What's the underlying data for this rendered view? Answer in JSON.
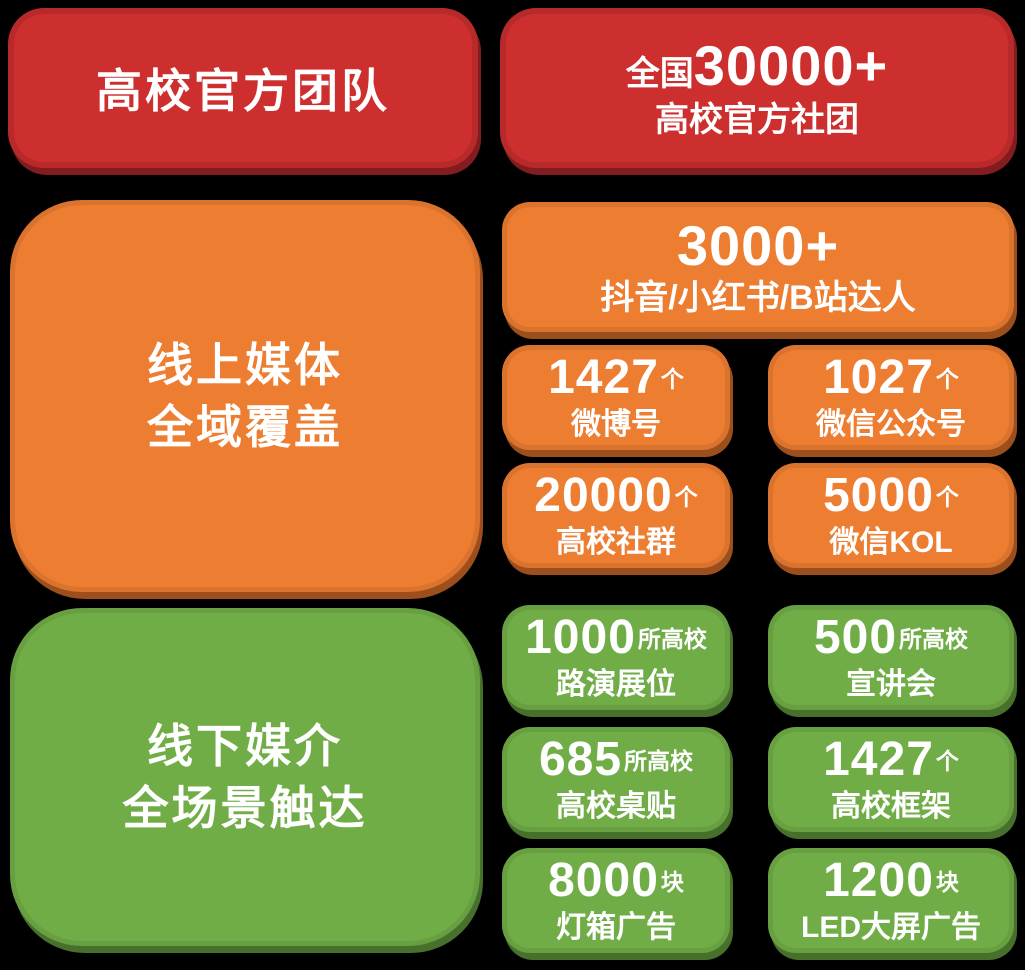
{
  "page": {
    "background": "#000000",
    "colors": {
      "red": "#cd2f2f",
      "orange": "#ed7d31",
      "green": "#70ad47",
      "text": "#ffffff"
    }
  },
  "sections": [
    {
      "id": "official-teams",
      "color": "#cd2f2f",
      "header": {
        "title": "高校官方团队"
      },
      "feature": {
        "prefix": "全国",
        "number": "30000+",
        "label": "高校官方社团"
      }
    },
    {
      "id": "online-media",
      "color": "#ed7d31",
      "header": {
        "line1": "线上媒体",
        "line2": "全域覆盖"
      },
      "wide": {
        "number": "3000+",
        "label": "抖音/小红书/B站达人"
      },
      "stats": [
        {
          "number": "1427",
          "unit": "个",
          "label": "微博号"
        },
        {
          "number": "1027",
          "unit": "个",
          "label": "微信公众号"
        },
        {
          "number": "20000",
          "unit": "个",
          "label": "高校社群"
        },
        {
          "number": "5000",
          "unit": "个",
          "label": "微信KOL"
        }
      ]
    },
    {
      "id": "offline-media",
      "color": "#70ad47",
      "header": {
        "line1": "线下媒介",
        "line2": "全场景触达"
      },
      "stats": [
        {
          "number": "1000",
          "unit": "所高校",
          "label": "路演展位"
        },
        {
          "number": "500",
          "unit": "所高校",
          "label": "宣讲会"
        },
        {
          "number": "685",
          "unit": "所高校",
          "label": "高校桌贴"
        },
        {
          "number": "1427",
          "unit": "个",
          "label": "高校框架"
        },
        {
          "number": "8000",
          "unit": "块",
          "label": "灯箱广告"
        },
        {
          "number": "1200",
          "unit": "块",
          "label": "LED大屏广告"
        }
      ]
    }
  ]
}
